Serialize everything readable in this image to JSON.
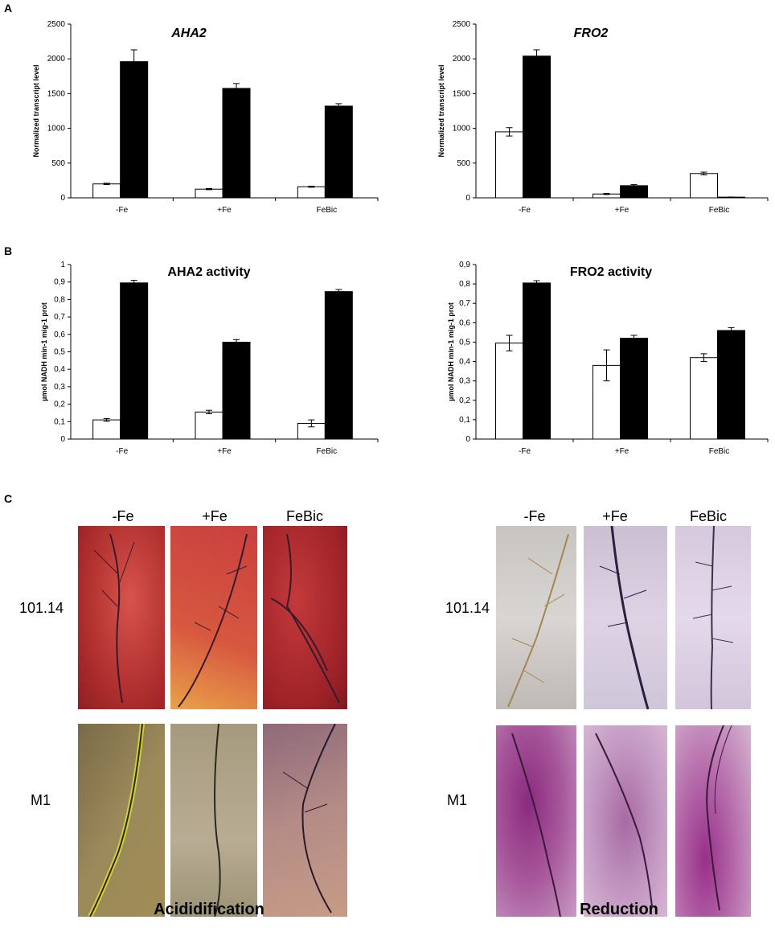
{
  "panels": {
    "a": "A",
    "b": "B",
    "c": "C"
  },
  "chart_data": [
    {
      "type": "bar",
      "title": "AHA2",
      "title_italic": true,
      "ylabel": "Normalized transcript level",
      "categories": [
        "-Fe",
        "+Fe",
        "FeBic"
      ],
      "ylim": [
        0,
        2500
      ],
      "yticks": [
        "0",
        "500",
        "1000",
        "1500",
        "2000",
        "2500"
      ],
      "yvals": [
        0,
        500,
        1000,
        1500,
        2000,
        2500
      ],
      "series": [
        {
          "fill": "#ffffff",
          "values": [
            200,
            125,
            160
          ],
          "errors": [
            10,
            8,
            8
          ]
        },
        {
          "fill": "#000000",
          "values": [
            1960,
            1575,
            1320
          ],
          "errors": [
            170,
            70,
            35
          ]
        }
      ]
    },
    {
      "type": "bar",
      "title": "FRO2",
      "title_italic": true,
      "ylabel": "Normalized transcript level",
      "categories": [
        "-Fe",
        "+Fe",
        "FeBic"
      ],
      "ylim": [
        0,
        2500
      ],
      "yticks": [
        "0",
        "500",
        "1000",
        "1500",
        "2000",
        "2500"
      ],
      "yvals": [
        0,
        500,
        1000,
        1500,
        2000,
        2500
      ],
      "series": [
        {
          "fill": "#ffffff",
          "values": [
            950,
            55,
            350
          ],
          "errors": [
            60,
            8,
            20
          ]
        },
        {
          "fill": "#000000",
          "values": [
            2040,
            175,
            10
          ],
          "errors": [
            90,
            15,
            2
          ]
        }
      ]
    },
    {
      "type": "bar",
      "title": "AHA2 activity",
      "title_italic": false,
      "ylabel": "µmol NADH min-1 mig-1 prot",
      "categories": [
        "-Fe",
        "+Fe",
        "FeBic"
      ],
      "ylim": [
        0,
        1
      ],
      "yticks": [
        "0",
        "0,1",
        "0,2",
        "0,3",
        "0,4",
        "0,5",
        "0,6",
        "0,7",
        "0,8",
        "0,9",
        "1"
      ],
      "yvals": [
        0,
        0.1,
        0.2,
        0.3,
        0.4,
        0.5,
        0.6,
        0.7,
        0.8,
        0.9,
        1
      ],
      "series": [
        {
          "fill": "#ffffff",
          "values": [
            0.11,
            0.155,
            0.09
          ],
          "errors": [
            0.008,
            0.01,
            0.02
          ]
        },
        {
          "fill": "#000000",
          "values": [
            0.895,
            0.555,
            0.845
          ],
          "errors": [
            0.015,
            0.015,
            0.012
          ]
        }
      ]
    },
    {
      "type": "bar",
      "title": "FRO2 activity",
      "title_italic": false,
      "ylabel": "µmol NADH min-1 mig-1 prot",
      "categories": [
        "-Fe",
        "+Fe",
        "FeBic"
      ],
      "ylim": [
        0,
        0.9
      ],
      "yticks": [
        "0",
        "0,1",
        "0,2",
        "0,3",
        "0,4",
        "0,5",
        "0,6",
        "0,7",
        "0,8",
        "0,9"
      ],
      "yvals": [
        0,
        0.1,
        0.2,
        0.3,
        0.4,
        0.5,
        0.6,
        0.7,
        0.8,
        0.9
      ],
      "series": [
        {
          "fill": "#ffffff",
          "values": [
            0.495,
            0.38,
            0.42
          ],
          "errors": [
            0.04,
            0.08,
            0.02
          ]
        },
        {
          "fill": "#000000",
          "values": [
            0.805,
            0.52,
            0.56
          ],
          "errors": [
            0.012,
            0.015,
            0.015
          ]
        }
      ]
    }
  ],
  "photos": {
    "columns": [
      "-Fe",
      "+Fe",
      "FeBic"
    ],
    "rows": [
      "101.14",
      "M1"
    ],
    "groups": [
      "Acididification",
      "Reduction"
    ]
  }
}
